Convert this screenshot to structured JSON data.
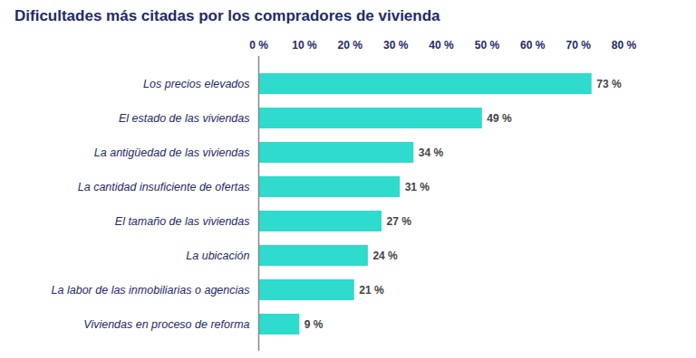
{
  "chart_data": {
    "type": "bar",
    "title": "Dificultades más citadas por los compradores de vivienda",
    "orientation": "horizontal",
    "categories": [
      "Los precios elevados",
      "El estado de las viviendas",
      "La antigüedad de las viviendas",
      "La cantidad insuficiente de ofertas",
      "El tamaño de las viviendas",
      "La ubicación",
      "La labor de las inmobiliarias o agencias",
      "Viviendas en proceso de reforma"
    ],
    "values": [
      73,
      49,
      34,
      31,
      27,
      24,
      21,
      9
    ],
    "value_labels": [
      "73 %",
      "49 %",
      "34 %",
      "31 %",
      "27 %",
      "24 %",
      "21 %",
      "9 %"
    ],
    "color": "#2edbcc",
    "xlim": [
      0,
      80
    ],
    "xticks": [
      {
        "value": 0,
        "label": "0 %"
      },
      {
        "value": 10,
        "label": "10 %"
      },
      {
        "value": 20,
        "label": "20 %"
      },
      {
        "value": 30,
        "label": "30 %"
      },
      {
        "value": 40,
        "label": "40 %"
      },
      {
        "value": 50,
        "label": "50 %"
      },
      {
        "value": 60,
        "label": "60 %"
      },
      {
        "value": 70,
        "label": "70 %"
      },
      {
        "value": 80,
        "label": "80 %"
      }
    ],
    "grid": false,
    "data_labels": true
  }
}
